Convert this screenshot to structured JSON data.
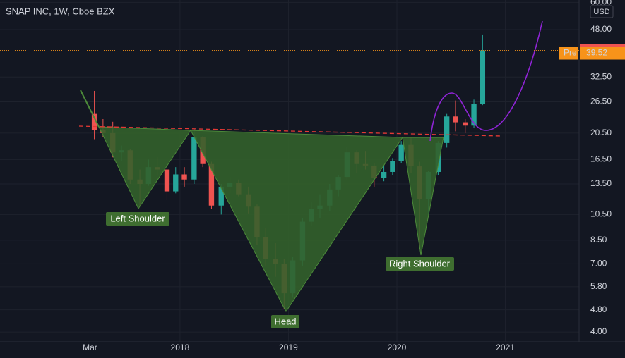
{
  "chart_data": {
    "type": "candlestick",
    "title": "SNAP INC, 1W, Cboe BZX",
    "currency": "USD",
    "x": [
      2017.21,
      2017.29,
      2017.38,
      2017.46,
      2017.54,
      2017.63,
      2017.71,
      2017.79,
      2017.88,
      2017.96,
      2018.04,
      2018.13,
      2018.21,
      2018.29,
      2018.38,
      2018.46,
      2018.54,
      2018.63,
      2018.71,
      2018.79,
      2018.88,
      2018.96,
      2019.04,
      2019.13,
      2019.21,
      2019.29,
      2019.38,
      2019.46,
      2019.54,
      2019.63,
      2019.71,
      2019.79,
      2019.88,
      2019.96,
      2020.04,
      2020.13,
      2020.21,
      2020.29,
      2020.38,
      2020.46,
      2020.54,
      2020.63,
      2020.71,
      2020.79
    ],
    "open": [
      24,
      21,
      20.5,
      17.5,
      17.8,
      14,
      13.5,
      15.5,
      15.2,
      12.7,
      14.6,
      14,
      19.8,
      15.9,
      11.3,
      13.2,
      13.6,
      12.4,
      11.2,
      8.7,
      7.3,
      7.0,
      5.5,
      7.2,
      9.9,
      11.0,
      11.3,
      12.9,
      14.3,
      17.5,
      15.9,
      15.7,
      14.2,
      14.9,
      16.3,
      18.6,
      15.6,
      11.9,
      14.9,
      18.9,
      23.5,
      22.4,
      21.8,
      26.1
    ],
    "high": [
      29,
      23,
      22.5,
      18.5,
      18,
      15.2,
      16.5,
      16.8,
      15.5,
      15.5,
      15.5,
      21.2,
      20,
      16.2,
      13.5,
      14.3,
      14,
      13.2,
      11.4,
      9.4,
      8.3,
      7.3,
      7.4,
      10.2,
      11.6,
      12.4,
      13.5,
      14.5,
      18.3,
      17.8,
      17.7,
      16.0,
      15.8,
      16.7,
      19.2,
      19.8,
      16.2,
      15.0,
      19.2,
      24.0,
      26.8,
      23.0,
      27.0,
      46.1
    ],
    "low": [
      19.5,
      19.8,
      16.8,
      16.3,
      13.5,
      11.3,
      13.3,
      14.5,
      11.8,
      12.5,
      13.2,
      13.5,
      15.5,
      11,
      10.5,
      12.5,
      12.2,
      10.6,
      8.2,
      6.9,
      6.3,
      4.82,
      5.3,
      6.9,
      9.6,
      10.2,
      10.8,
      12.2,
      14.0,
      14.8,
      15.2,
      13.2,
      13.8,
      14.5,
      16.0,
      14.8,
      7.9,
      10.5,
      14.5,
      18.2,
      20.8,
      20.5,
      21.4,
      25.8
    ],
    "close": [
      21,
      20.5,
      17.5,
      17.8,
      14,
      13.5,
      15.5,
      15.2,
      12.7,
      14.6,
      14,
      19.8,
      15.9,
      11.3,
      13.2,
      13.6,
      12.4,
      11.2,
      8.7,
      7.3,
      7.0,
      5.5,
      7.2,
      9.9,
      11.0,
      11.3,
      12.9,
      14.3,
      17.5,
      15.9,
      15.7,
      14.2,
      14.9,
      16.3,
      18.6,
      15.6,
      11.9,
      14.9,
      18.9,
      23.5,
      22.4,
      21.8,
      26.1,
      40.43
    ],
    "up_color": "#26a69a",
    "down_color": "#ef5350",
    "pre_market": {
      "label": "Pre",
      "value": 39.52
    },
    "annotations": [
      "Left Shoulder",
      "Head",
      "Right Shoulder"
    ],
    "log_scale": true,
    "xlim": [
      2016.34,
      2021.68
    ],
    "xticks": [
      {
        "value": 2017.17,
        "label": "Mar"
      },
      2018,
      2019,
      2020,
      2021
    ],
    "ylim": [
      3.69,
      61.2
    ],
    "yticks": [
      {
        "value": 4,
        "label": "4.00"
      },
      {
        "value": 4.8,
        "label": "4.80"
      },
      {
        "value": 5.8,
        "label": "5.80"
      },
      {
        "value": 7,
        "label": "7.00"
      },
      {
        "value": 8.5,
        "label": "8.50"
      },
      {
        "value": 10.5,
        "label": "10.50"
      },
      {
        "value": 13.5,
        "label": "13.50"
      },
      {
        "value": 16.5,
        "label": "16.50"
      },
      {
        "value": 20.5,
        "label": "20.50"
      },
      {
        "value": 26.5,
        "label": "26.50"
      },
      {
        "value": 32.5,
        "label": "32.50"
      },
      {
        "value": 48,
        "label": "48.00"
      },
      {
        "value": 60,
        "label": "60.00"
      }
    ]
  }
}
